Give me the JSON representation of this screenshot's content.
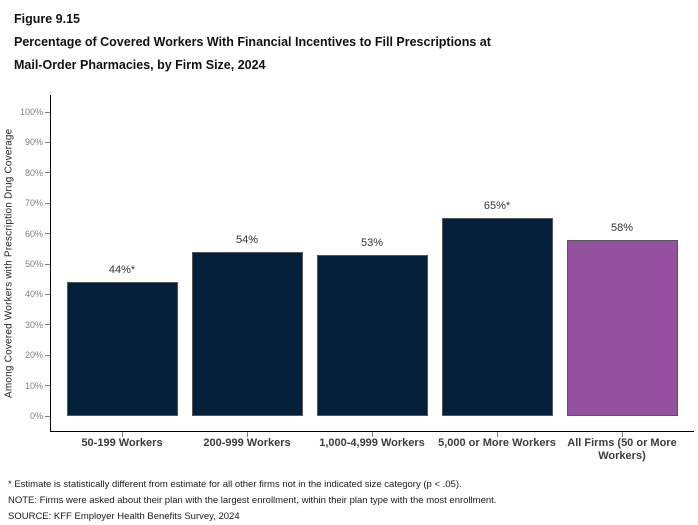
{
  "title": {
    "figure_label": "Figure 9.15",
    "line1": "Percentage of Covered Workers With Financial Incentives to Fill Prescriptions at",
    "line2": "Mail-Order Pharmacies, by Firm Size, 2024"
  },
  "chart_data": {
    "type": "bar",
    "title": "Percentage of Covered Workers With Financial Incentives to Fill Prescriptions at Mail-Order Pharmacies, by Firm Size, 2024",
    "categories": [
      "50-199 Workers",
      "200-999 Workers",
      "1,000-4,999 Workers",
      "5,000 or More Workers",
      "All Firms (50 or More Workers)"
    ],
    "values": [
      44,
      54,
      53,
      65,
      58
    ],
    "value_labels": [
      "44%*",
      "54%",
      "53%",
      "65%*",
      "58%"
    ],
    "bar_colors": [
      "#022039",
      "#022039",
      "#022039",
      "#022039",
      "#94519f"
    ],
    "xlabel": "",
    "ylabel": "Among Covered Workers with Prescription Drug Coverage",
    "ylim": [
      0,
      100
    ],
    "ytick_labels": [
      "0%",
      "10%",
      "20%",
      "30%",
      "40%",
      "50%",
      "60%",
      "70%",
      "80%",
      "90%",
      "100%"
    ],
    "grid": false,
    "legend_position": "none"
  },
  "footnotes": [
    "* Estimate is statistically different from estimate for all other firms not in the indicated size category (p < .05).",
    "NOTE: Firms were asked about their plan with the largest enrollment, within their plan type with the most enrollment.",
    "SOURCE: KFF Employer Health Benefits Survey, 2024"
  ]
}
